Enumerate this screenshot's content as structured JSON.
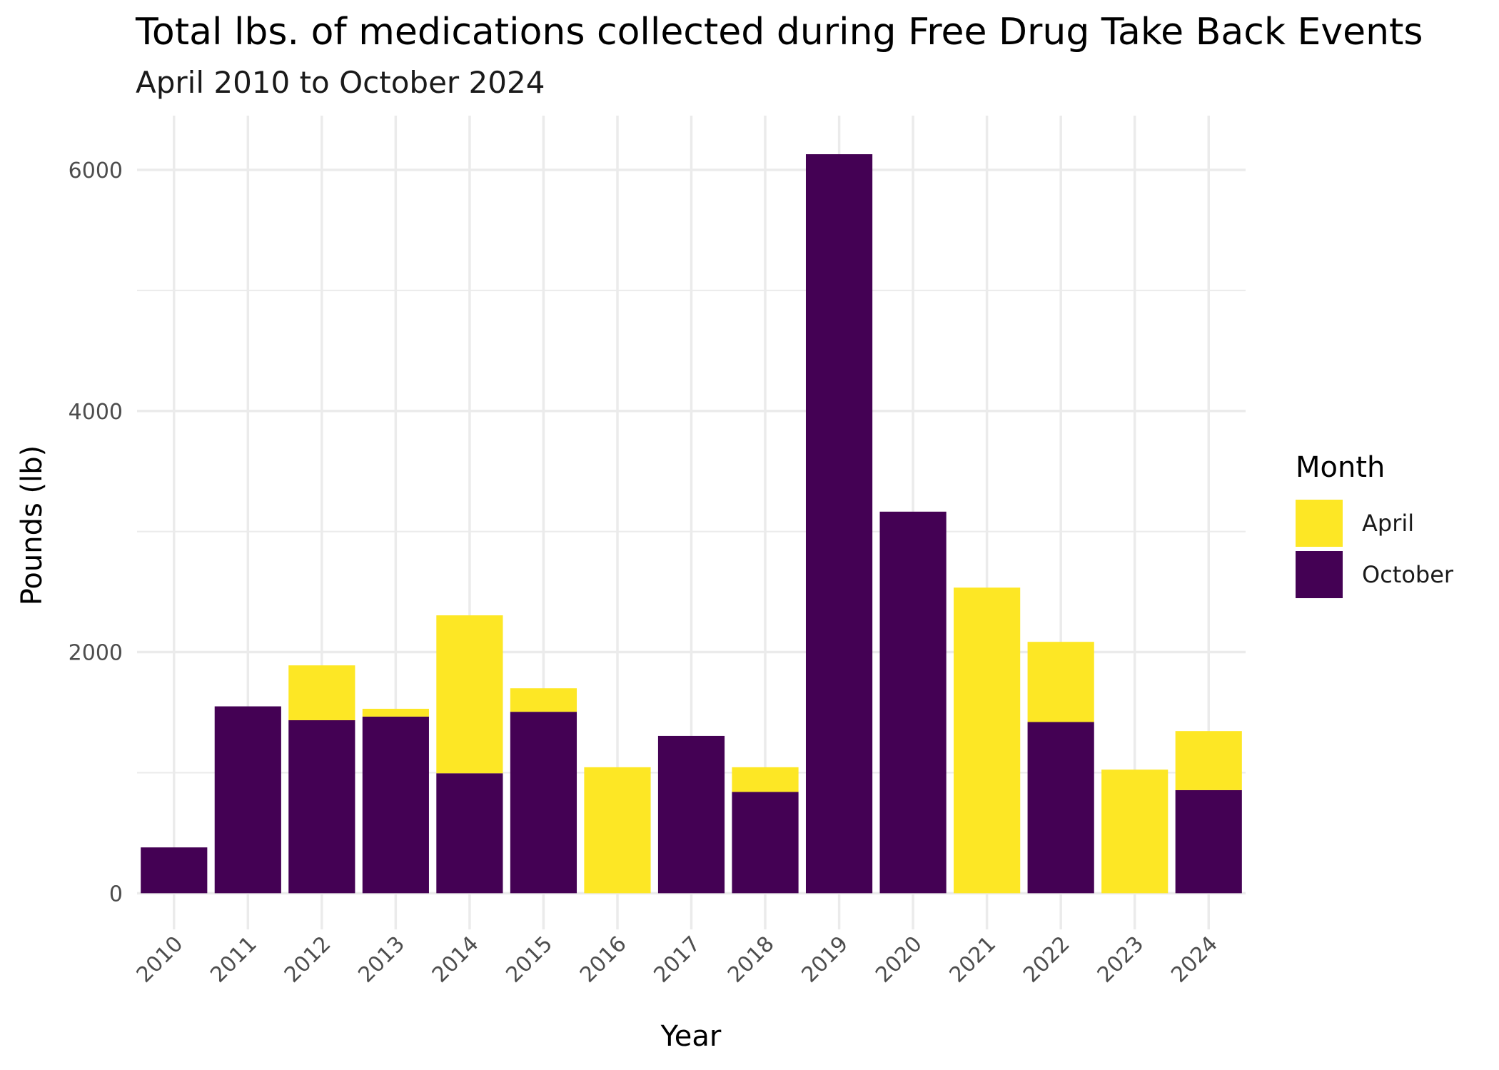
{
  "chart_data": {
    "type": "bar",
    "stacked": true,
    "title": "Total lbs. of medications collected during Free Drug Take Back Events",
    "subtitle": "April 2010 to October 2024",
    "xlabel": "Year",
    "ylabel": "Pounds (lb)",
    "categories": [
      "2010",
      "2011",
      "2012",
      "2013",
      "2014",
      "2015",
      "2016",
      "2017",
      "2018",
      "2019",
      "2020",
      "2021",
      "2022",
      "2023",
      "2024"
    ],
    "series": [
      {
        "name": "October",
        "color": "#440154",
        "values": [
          380,
          1550,
          1435,
          1465,
          995,
          1505,
          0,
          1305,
          840,
          6130,
          3165,
          0,
          1420,
          0,
          855
        ]
      },
      {
        "name": "April",
        "color": "#FDE725",
        "values": [
          0,
          0,
          455,
          65,
          1310,
          195,
          1045,
          0,
          205,
          0,
          0,
          2535,
          665,
          1025,
          490
        ]
      }
    ],
    "stack_order_bottom_to_top": [
      "October",
      "April"
    ],
    "ylim": [
      -300,
      6450
    ],
    "yticks": [
      0,
      2000,
      4000,
      6000
    ],
    "grid": true,
    "legend": {
      "title": "Month",
      "placement": "right",
      "entries": [
        {
          "label": "April",
          "color": "#FDE725"
        },
        {
          "label": "October",
          "color": "#440154"
        }
      ]
    }
  }
}
